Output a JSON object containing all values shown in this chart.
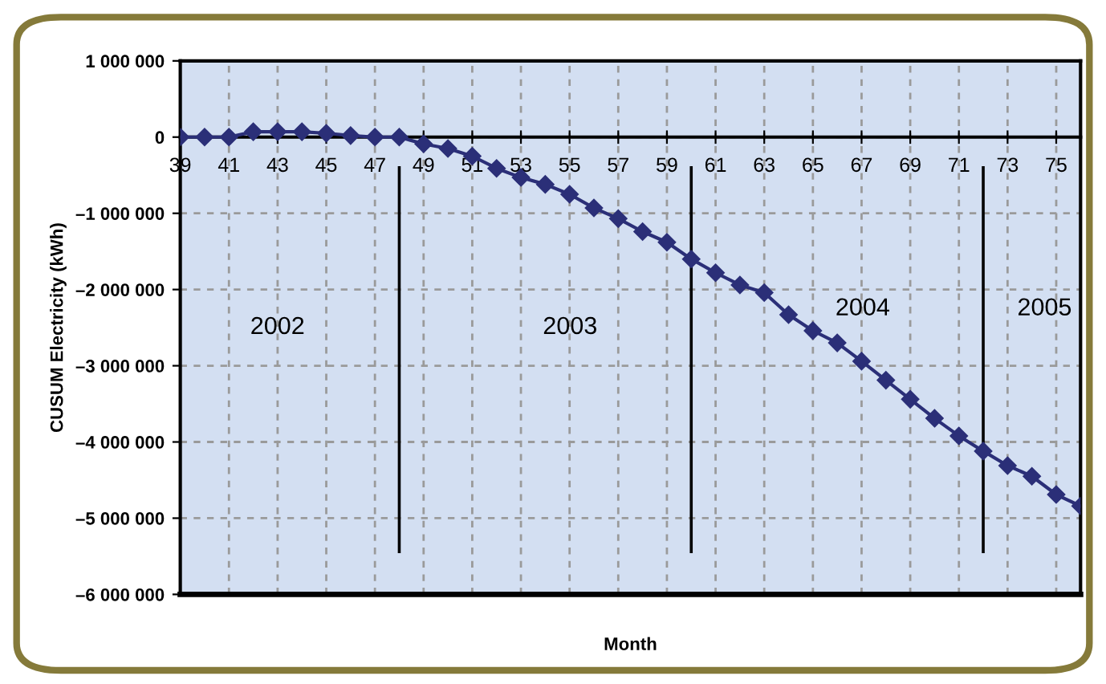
{
  "chart_data": {
    "type": "line",
    "xlabel": "Month",
    "ylabel": "CUSUM Electricity (kWh)",
    "x": [
      39,
      40,
      41,
      42,
      43,
      44,
      45,
      46,
      47,
      48,
      49,
      50,
      51,
      52,
      53,
      54,
      55,
      56,
      57,
      58,
      59,
      60,
      61,
      62,
      63,
      64,
      65,
      66,
      67,
      68,
      69,
      70,
      71,
      72,
      73,
      74,
      75,
      76
    ],
    "series": [
      {
        "color": "#2b2f78",
        "values": [
          0,
          0,
          0,
          70000,
          70000,
          70000,
          50000,
          20000,
          0,
          0,
          -90000,
          -150000,
          -250000,
          -410000,
          -530000,
          -620000,
          -750000,
          -930000,
          -1070000,
          -1240000,
          -1380000,
          -1600000,
          -1780000,
          -1940000,
          -2040000,
          -2330000,
          -2540000,
          -2700000,
          -2940000,
          -3190000,
          -3440000,
          -3690000,
          -3920000,
          -4120000,
          -4310000,
          -4450000,
          -4690000,
          -4840000
        ]
      }
    ],
    "xlim": [
      39,
      76
    ],
    "ylim": [
      -6000000,
      1000000
    ],
    "xticks": [
      39,
      41,
      43,
      45,
      47,
      49,
      51,
      53,
      55,
      57,
      59,
      61,
      63,
      65,
      67,
      69,
      71,
      73,
      75
    ],
    "yticks": [
      {
        "value": 1000000,
        "label": "1 000 000"
      },
      0,
      {
        "value": -1000000,
        "label": "–1 000 000"
      },
      {
        "value": -2000000,
        "label": "–2 000 000"
      },
      {
        "value": -3000000,
        "label": "–3 000 000"
      },
      {
        "value": -4000000,
        "label": "–4 000 000"
      },
      {
        "value": -5000000,
        "label": "–5 000 000"
      },
      {
        "value": -6000000,
        "label": "–6 000 000"
      }
    ],
    "ref_lines": [
      {
        "axis": "x",
        "value": 48,
        "color": "#000000"
      },
      {
        "axis": "x",
        "value": 60,
        "color": "#000000"
      },
      {
        "axis": "x",
        "value": 72,
        "color": "#000000"
      }
    ],
    "annotations": [
      "2002",
      "2003",
      "2004",
      "2005"
    ],
    "grid": true,
    "marker": "diamond",
    "line_style": "solid",
    "legend": false
  }
}
